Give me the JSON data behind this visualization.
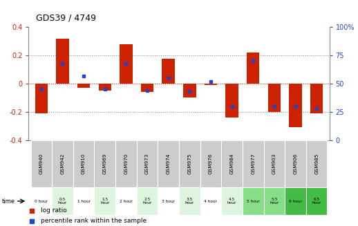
{
  "title": "GDS39 / 4749",
  "samples": [
    "GSM940",
    "GSM942",
    "GSM910",
    "GSM969",
    "GSM970",
    "GSM973",
    "GSM974",
    "GSM975",
    "GSM976",
    "GSM984",
    "GSM977",
    "GSM903",
    "GSM906",
    "GSM985"
  ],
  "time_labels": [
    "0 hour",
    "0.5\nhour",
    "1 hour",
    "1.5\nhour",
    "2 hour",
    "2.5\nhour",
    "3 hour",
    "3.5\nhour",
    "4 hour",
    "4.5\nhour",
    "5 hour",
    "5.5\nhour",
    "6 hour",
    "6.5\nhour"
  ],
  "log_ratio": [
    -0.21,
    0.32,
    -0.03,
    -0.05,
    0.28,
    -0.06,
    0.175,
    -0.1,
    -0.01,
    -0.24,
    0.22,
    -0.2,
    -0.31,
    -0.21
  ],
  "percentile": [
    45,
    68,
    57,
    45,
    68,
    44,
    55,
    43,
    52,
    30,
    70,
    30,
    30,
    28
  ],
  "ylim": [
    -0.4,
    0.4
  ],
  "yticks_left": [
    -0.4,
    -0.2,
    0.0,
    0.2,
    0.4
  ],
  "yticks_right": [
    0,
    25,
    50,
    75,
    100
  ],
  "bar_color": "#cc2200",
  "blue_color": "#2244cc",
  "zero_line_color": "#cc2200",
  "dotted_line_color": "#888888",
  "bg_color": "#ffffff",
  "time_bg_colors": [
    "#ffffff",
    "#ddf5dd",
    "#ffffff",
    "#ddf5dd",
    "#ffffff",
    "#ddf5dd",
    "#ffffff",
    "#ddf5dd",
    "#ffffff",
    "#ddf5dd",
    "#88dd88",
    "#88dd88",
    "#44bb44",
    "#44bb44"
  ],
  "sample_bg_color": "#cccccc",
  "bar_width": 0.6
}
